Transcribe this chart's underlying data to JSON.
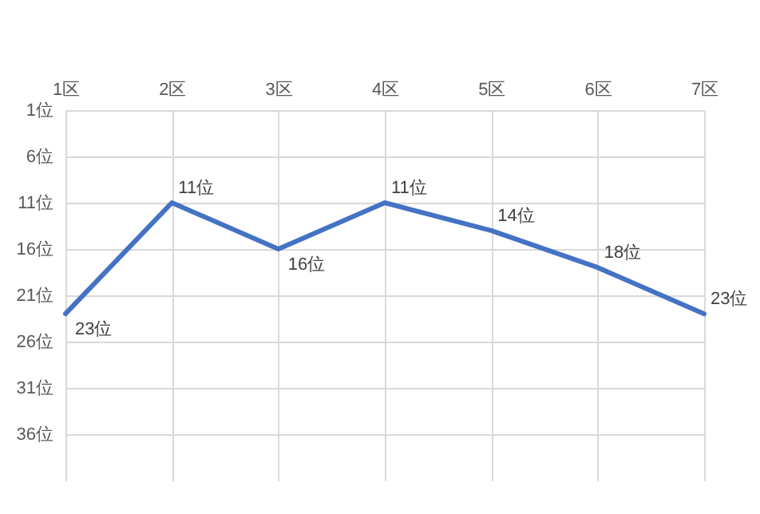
{
  "chart_data": {
    "type": "line",
    "categories": [
      "1区",
      "2区",
      "3区",
      "4区",
      "5区",
      "6区",
      "7区"
    ],
    "values": [
      23,
      11,
      16,
      11,
      14,
      18,
      23
    ],
    "value_labels": [
      "23位",
      "11位",
      "16位",
      "11位",
      "14位",
      "18位",
      "23位"
    ],
    "color": "#4472c4",
    "grid": true,
    "marker": "none",
    "ylim": [
      41,
      1
    ],
    "yticks": [
      {
        "value": 1,
        "label": "1位"
      },
      {
        "value": 6,
        "label": "6位"
      },
      {
        "value": 11,
        "label": "11位"
      },
      {
        "value": 16,
        "label": "16位"
      },
      {
        "value": 21,
        "label": "21位"
      },
      {
        "value": 26,
        "label": "26位"
      },
      {
        "value": 31,
        "label": "31位"
      },
      {
        "value": 36,
        "label": "36位"
      }
    ]
  }
}
